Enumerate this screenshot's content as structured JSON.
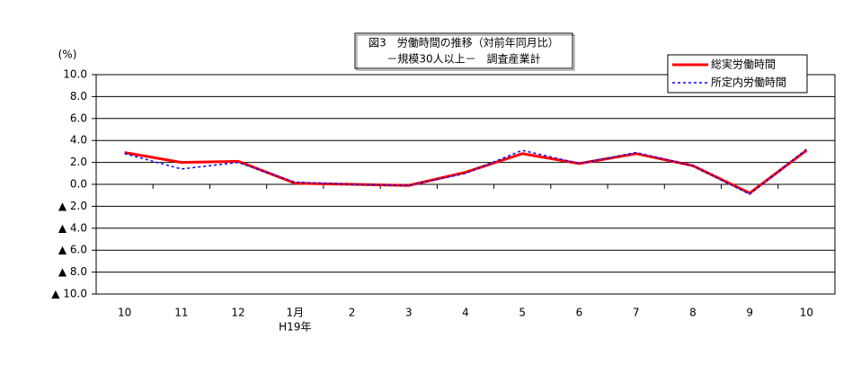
{
  "chart_data": {
    "type": "line",
    "title": "図3　労働時間の推移（対前年同月比）",
    "subtitle": "－規模30人以上－　調査産業計",
    "y_label": "(%)",
    "categories": [
      "10",
      "11",
      "12",
      "1月",
      "2",
      "3",
      "4",
      "5",
      "6",
      "7",
      "8",
      "9",
      "10"
    ],
    "year_label": "H19年",
    "series": [
      {
        "name": "総実労働時間",
        "color": "#ff0000",
        "values": [
          2.9,
          2.0,
          2.1,
          0.1,
          0.0,
          -0.1,
          1.1,
          2.8,
          1.9,
          2.8,
          1.7,
          -0.8,
          3.1
        ]
      },
      {
        "name": "所定内労働時間",
        "color": "#0000ff",
        "values": [
          2.8,
          1.4,
          2.0,
          0.2,
          0.0,
          -0.1,
          1.0,
          3.1,
          1.9,
          2.9,
          1.7,
          -0.9,
          3.2
        ]
      }
    ],
    "ylim": [
      -10,
      10
    ],
    "yticks": [
      {
        "value": 10,
        "label": "10.0"
      },
      {
        "value": 8,
        "label": "8.0"
      },
      {
        "value": 6,
        "label": "6.0"
      },
      {
        "value": 4,
        "label": "4.0"
      },
      {
        "value": 2,
        "label": "2.0"
      },
      {
        "value": 0,
        "label": "0.0"
      },
      {
        "value": -2,
        "label": "▲ 2.0"
      },
      {
        "value": -4,
        "label": "▲ 4.0"
      },
      {
        "value": -6,
        "label": "▲ 6.0"
      },
      {
        "value": -8,
        "label": "▲ 8.0"
      },
      {
        "value": -10,
        "label": "▲ 10.0"
      }
    ],
    "grid": true
  }
}
